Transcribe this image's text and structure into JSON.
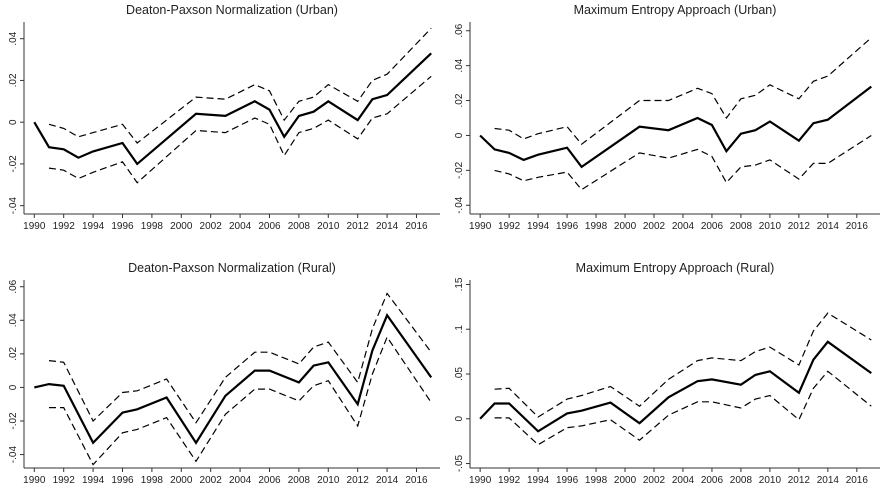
{
  "chart_data": [
    {
      "type": "line",
      "title": "Deaton-Paxson Normalization (Urban)",
      "x": [
        1990,
        1991,
        1992,
        1993,
        1994,
        1996,
        1997,
        2001,
        2003,
        2005,
        2006,
        2007,
        2008,
        2009,
        2010,
        2012,
        2013,
        2014,
        2017
      ],
      "xlim": [
        1989.3,
        2017.6
      ],
      "xticks": [
        1990,
        1992,
        1994,
        1996,
        1998,
        2000,
        2002,
        2004,
        2006,
        2008,
        2010,
        2012,
        2014,
        2016
      ],
      "ylim": [
        -0.044,
        0.048
      ],
      "yticks": [
        {
          "value": -0.04,
          "label": "-.04"
        },
        {
          "value": -0.02,
          "label": "-.02"
        },
        0,
        {
          "value": 0.02,
          "label": ".02"
        },
        {
          "value": 0.04,
          "label": ".04"
        }
      ],
      "series": [
        {
          "color": "#000000",
          "dashed": false,
          "values": [
            0,
            -0.012,
            -0.013,
            -0.017,
            -0.014,
            -0.01,
            -0.02,
            0.004,
            0.003,
            0.01,
            0.006,
            -0.007,
            0.003,
            0.005,
            0.01,
            0.001,
            0.011,
            0.013,
            0.033
          ]
        },
        {
          "color": "#000000",
          "dashed": true,
          "values": [
            null,
            -0.001,
            -0.003,
            -0.007,
            -0.005,
            -0.001,
            -0.01,
            0.012,
            0.011,
            0.018,
            0.015,
            0.001,
            0.01,
            0.012,
            0.018,
            0.01,
            0.02,
            0.023,
            0.045
          ]
        },
        {
          "color": "#000000",
          "dashed": true,
          "values": [
            null,
            -0.022,
            -0.023,
            -0.027,
            -0.024,
            -0.019,
            -0.029,
            -0.004,
            -0.005,
            0.002,
            -0.001,
            -0.016,
            -0.005,
            -0.003,
            0.001,
            -0.008,
            0.002,
            0.004,
            0.022
          ]
        }
      ]
    },
    {
      "type": "line",
      "title": "Maximum Entropy Approach (Urban)",
      "x": [
        1990,
        1991,
        1992,
        1993,
        1994,
        1996,
        1997,
        2001,
        2003,
        2005,
        2006,
        2007,
        2008,
        2009,
        2010,
        2012,
        2013,
        2014,
        2017
      ],
      "xlim": [
        1989.3,
        2017.6
      ],
      "xticks": [
        1990,
        1992,
        1994,
        1996,
        1998,
        2000,
        2002,
        2004,
        2006,
        2008,
        2010,
        2012,
        2014,
        2016
      ],
      "ylim": [
        -0.045,
        0.065
      ],
      "yticks": [
        {
          "value": -0.04,
          "label": "-.04"
        },
        {
          "value": -0.02,
          "label": "-.02"
        },
        0,
        {
          "value": 0.02,
          "label": ".02"
        },
        {
          "value": 0.04,
          "label": ".04"
        },
        {
          "value": 0.06,
          "label": ".06"
        }
      ],
      "series": [
        {
          "color": "#000000",
          "dashed": false,
          "values": [
            0,
            -0.008,
            -0.01,
            -0.014,
            -0.011,
            -0.007,
            -0.018,
            0.005,
            0.003,
            0.01,
            0.006,
            -0.009,
            0.001,
            0.003,
            0.008,
            -0.003,
            0.007,
            0.009,
            0.028
          ]
        },
        {
          "color": "#000000",
          "dashed": true,
          "values": [
            null,
            0.004,
            0.003,
            -0.002,
            0.001,
            0.005,
            -0.005,
            0.02,
            0.02,
            0.027,
            0.024,
            0.01,
            0.021,
            0.023,
            0.029,
            0.021,
            0.031,
            0.034,
            0.056
          ]
        },
        {
          "color": "#000000",
          "dashed": true,
          "values": [
            null,
            -0.02,
            -0.022,
            -0.026,
            -0.024,
            -0.021,
            -0.031,
            -0.01,
            -0.013,
            -0.008,
            -0.012,
            -0.027,
            -0.018,
            -0.017,
            -0.014,
            -0.025,
            -0.016,
            -0.016,
            0.0
          ]
        }
      ]
    },
    {
      "type": "line",
      "title": "Deaton-Paxson Normalization (Rural)",
      "x": [
        1990,
        1991,
        1992,
        1994,
        1996,
        1997,
        1999,
        2001,
        2003,
        2005,
        2006,
        2008,
        2009,
        2010,
        2012,
        2013,
        2014,
        2017
      ],
      "xlim": [
        1989.3,
        2017.6
      ],
      "xticks": [
        1990,
        1992,
        1994,
        1996,
        1998,
        2000,
        2002,
        2004,
        2006,
        2008,
        2010,
        2012,
        2014,
        2016
      ],
      "ylim": [
        -0.048,
        0.064
      ],
      "yticks": [
        {
          "value": -0.04,
          "label": "-.04"
        },
        {
          "value": -0.02,
          "label": "-.02"
        },
        0,
        {
          "value": 0.02,
          "label": ".02"
        },
        {
          "value": 0.04,
          "label": ".04"
        },
        {
          "value": 0.06,
          "label": ".06"
        }
      ],
      "series": [
        {
          "color": "#000000",
          "dashed": false,
          "values": [
            0,
            0.002,
            0.001,
            -0.033,
            -0.015,
            -0.013,
            -0.006,
            -0.033,
            -0.005,
            0.01,
            0.01,
            0.003,
            0.013,
            0.015,
            -0.01,
            0.022,
            0.043,
            0.006
          ]
        },
        {
          "color": "#000000",
          "dashed": true,
          "values": [
            null,
            0.016,
            0.015,
            -0.02,
            -0.003,
            -0.002,
            0.005,
            -0.021,
            0.006,
            0.021,
            0.021,
            0.014,
            0.024,
            0.027,
            0.003,
            0.035,
            0.056,
            0.021
          ]
        },
        {
          "color": "#000000",
          "dashed": true,
          "values": [
            null,
            -0.012,
            -0.012,
            -0.046,
            -0.027,
            -0.025,
            -0.018,
            -0.044,
            -0.016,
            -0.001,
            -0.001,
            -0.008,
            0.001,
            0.004,
            -0.023,
            0.008,
            0.03,
            -0.009
          ]
        }
      ]
    },
    {
      "type": "line",
      "title": "Maximum Entropy Approach (Rural)",
      "x": [
        1990,
        1991,
        1992,
        1994,
        1996,
        1997,
        1999,
        2001,
        2003,
        2005,
        2006,
        2008,
        2009,
        2010,
        2012,
        2013,
        2014,
        2017
      ],
      "xlim": [
        1989.3,
        2017.6
      ],
      "xticks": [
        1990,
        1992,
        1994,
        1996,
        1998,
        2000,
        2002,
        2004,
        2006,
        2008,
        2010,
        2012,
        2014,
        2016
      ],
      "ylim": [
        -0.055,
        0.155
      ],
      "yticks": [
        {
          "value": -0.05,
          "label": "-.05"
        },
        0,
        {
          "value": 0.05,
          "label": ".05"
        },
        {
          "value": 0.1,
          "label": ".1"
        },
        {
          "value": 0.15,
          "label": ".15"
        }
      ],
      "series": [
        {
          "color": "#000000",
          "dashed": false,
          "values": [
            0,
            0.017,
            0.017,
            -0.014,
            0.006,
            0.009,
            0.018,
            -0.005,
            0.024,
            0.042,
            0.044,
            0.038,
            0.049,
            0.053,
            0.029,
            0.066,
            0.086,
            0.051
          ]
        },
        {
          "color": "#000000",
          "dashed": true,
          "values": [
            null,
            0.033,
            0.034,
            0.002,
            0.022,
            0.026,
            0.036,
            0.014,
            0.044,
            0.065,
            0.068,
            0.065,
            0.075,
            0.08,
            0.06,
            0.098,
            0.118,
            0.088
          ]
        },
        {
          "color": "#000000",
          "dashed": true,
          "values": [
            null,
            0.001,
            0.001,
            -0.029,
            -0.01,
            -0.008,
            -0.001,
            -0.024,
            0.004,
            0.019,
            0.019,
            0.012,
            0.022,
            0.026,
            -0.001,
            0.034,
            0.053,
            0.014
          ]
        }
      ]
    }
  ]
}
